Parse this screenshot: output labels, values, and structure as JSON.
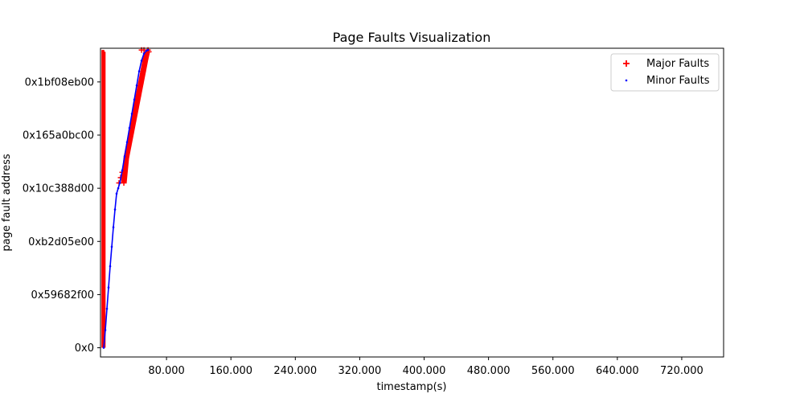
{
  "chart_data": {
    "type": "scatter",
    "title": "Page Faults Visualization",
    "xlabel": "timestamp(s)",
    "ylabel": "page fault address",
    "xlim": [
      -2,
      772
    ],
    "ylim": [
      -260000000,
      8450000000
    ],
    "x_ticks": [
      {
        "value": 80,
        "label": "80.000"
      },
      {
        "value": 160,
        "label": "160.000"
      },
      {
        "value": 240,
        "label": "240.000"
      },
      {
        "value": 320,
        "label": "320.000"
      },
      {
        "value": 400,
        "label": "400.000"
      },
      {
        "value": 480,
        "label": "480.000"
      },
      {
        "value": 560,
        "label": "560.000"
      },
      {
        "value": 640,
        "label": "640.000"
      },
      {
        "value": 720,
        "label": "720.000"
      }
    ],
    "y_ticks": [
      {
        "value": 0,
        "label": "0x0"
      },
      {
        "value": 1500000000,
        "label": "0x59682f00"
      },
      {
        "value": 3000000000,
        "label": "0xb2d05e00"
      },
      {
        "value": 4500000000,
        "label": "0x10c388d00"
      },
      {
        "value": 6000000000,
        "label": "0x165a0bc00"
      },
      {
        "value": 7500000000,
        "label": "0x1bf08eb00"
      }
    ],
    "grid": false,
    "legend_position": "top-right",
    "series": [
      {
        "name": "Major Faults",
        "marker": "plus",
        "color": "#ff0000",
        "bands": [
          {
            "x": 0.3,
            "y_from": 0,
            "y_to": 8400000000
          },
          {
            "x": 1.0,
            "y_from": 0,
            "y_to": 8400000000
          },
          {
            "x": 1.8,
            "y_from": 0,
            "y_to": 8400000000
          },
          {
            "x": 2.5,
            "y_from": 0,
            "y_to": 8350000000
          },
          {
            "x": 3.2,
            "y_from": 0,
            "y_to": 8350000000
          }
        ],
        "points": [
          {
            "x": 21,
            "y": 4650000000
          },
          {
            "x": 23,
            "y": 4800000000
          },
          {
            "x": 25,
            "y": 4950000000
          },
          {
            "x": 27,
            "y": 4650000000
          },
          {
            "x": 30,
            "y": 5350000000
          },
          {
            "x": 33,
            "y": 5700000000
          },
          {
            "x": 36,
            "y": 6050000000
          },
          {
            "x": 39,
            "y": 6400000000
          },
          {
            "x": 42,
            "y": 6750000000
          },
          {
            "x": 45,
            "y": 7100000000
          },
          {
            "x": 48,
            "y": 7450000000
          },
          {
            "x": 51,
            "y": 7800000000
          },
          {
            "x": 54,
            "y": 8150000000
          },
          {
            "x": 56,
            "y": 8350000000
          },
          {
            "x": 58,
            "y": 8350000000
          },
          {
            "x": 49,
            "y": 8400000000
          },
          {
            "x": 52,
            "y": 8400000000
          },
          {
            "x": 57,
            "y": 8400000000
          }
        ]
      },
      {
        "name": "Minor Faults",
        "marker": "dot",
        "color": "#0000ff",
        "points": [
          {
            "x": 2,
            "y": 0
          },
          {
            "x": 4,
            "y": 500000000
          },
          {
            "x": 6,
            "y": 1100000000
          },
          {
            "x": 8,
            "y": 1700000000
          },
          {
            "x": 10,
            "y": 2300000000
          },
          {
            "x": 12,
            "y": 2850000000
          },
          {
            "x": 14,
            "y": 3400000000
          },
          {
            "x": 16,
            "y": 3900000000
          },
          {
            "x": 18,
            "y": 4350000000
          },
          {
            "x": 20,
            "y": 4500000000
          },
          {
            "x": 22,
            "y": 4650000000
          },
          {
            "x": 25,
            "y": 5000000000
          },
          {
            "x": 28,
            "y": 5400000000
          },
          {
            "x": 31,
            "y": 5800000000
          },
          {
            "x": 34,
            "y": 6200000000
          },
          {
            "x": 37,
            "y": 6600000000
          },
          {
            "x": 40,
            "y": 7000000000
          },
          {
            "x": 43,
            "y": 7400000000
          },
          {
            "x": 46,
            "y": 7800000000
          },
          {
            "x": 49,
            "y": 8100000000
          },
          {
            "x": 52,
            "y": 8300000000
          },
          {
            "x": 55,
            "y": 8380000000
          },
          {
            "x": 57,
            "y": 8400000000
          }
        ]
      }
    ]
  }
}
